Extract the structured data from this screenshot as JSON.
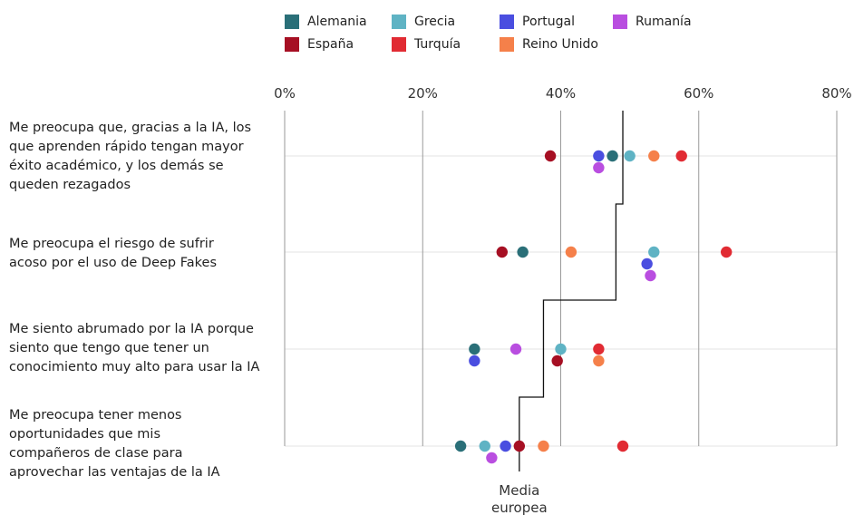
{
  "chart_data": {
    "type": "scatter",
    "title": "",
    "xlabel": "",
    "ylabel": "",
    "xlim": [
      0,
      80
    ],
    "x_ticks": [
      "0%",
      "20%",
      "40%",
      "60%",
      "80%"
    ],
    "categories": [
      "Me preocupa que, gracias a la IA, los\nque aprenden rápido tengan mayor\néxito académico, y los demás se\nqueden rezagados",
      "Me preocupa el riesgo de sufrir\nacoso por el uso de Deep Fakes",
      "Me siento abrumado por la IA porque\nsiento que tengo que tener un\nconocimiento muy alto para usar la IA",
      "Me preocupa tener menos\noportunidades que mis\ncompañeros de clase para\naprovechar las ventajas de la IA"
    ],
    "series": [
      {
        "name": "Alemania",
        "color": "#2a6f78",
        "values": [
          47.5,
          34.5,
          27.5,
          25.5
        ]
      },
      {
        "name": "Grecia",
        "color": "#5fb3c4",
        "values": [
          50,
          53.5,
          40,
          29
        ]
      },
      {
        "name": "Portugal",
        "color": "#4a4ee0",
        "values": [
          45.5,
          52.5,
          27.5,
          32
        ]
      },
      {
        "name": "Rumanía",
        "color": "#b94ee0",
        "values": [
          45.5,
          53,
          33.5,
          30
        ]
      },
      {
        "name": "España",
        "color": "#a60f23",
        "values": [
          38.5,
          31.5,
          39.5,
          34
        ]
      },
      {
        "name": "Turquía",
        "color": "#e12b33",
        "values": [
          57.5,
          64,
          45.5,
          49
        ]
      },
      {
        "name": "Reino Unido",
        "color": "#f5804a",
        "values": [
          53.5,
          41.5,
          45.5,
          37.5
        ]
      }
    ],
    "average": {
      "label": "Media\neuropea",
      "values": [
        49,
        48,
        37.5,
        34
      ]
    },
    "grid": true,
    "legend_position": "top"
  }
}
